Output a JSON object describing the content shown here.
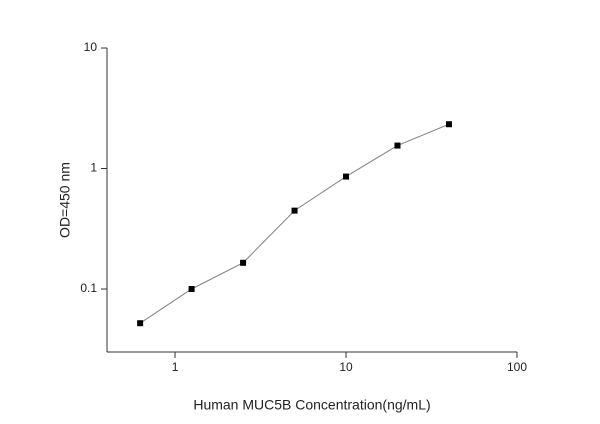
{
  "chart_data": {
    "type": "line",
    "x_label": "Human MUC5B Concentration(ng/mL)",
    "y_label": "OD=450 nm",
    "x": [
      0.625,
      1.25,
      2.5,
      5,
      10,
      20,
      40
    ],
    "series": [
      {
        "values": [
          0.052,
          0.1,
          0.165,
          0.447,
          0.857,
          1.55,
          2.33
        ],
        "color": "#000000",
        "line_color": "#808080"
      }
    ],
    "xlim": [
      0.4,
      100
    ],
    "ylim": [
      0.03,
      10
    ],
    "xticks": [
      1,
      10,
      100
    ],
    "yticks": [
      0.1,
      1,
      10
    ],
    "x_log": true,
    "y_log": true,
    "grid": false
  }
}
